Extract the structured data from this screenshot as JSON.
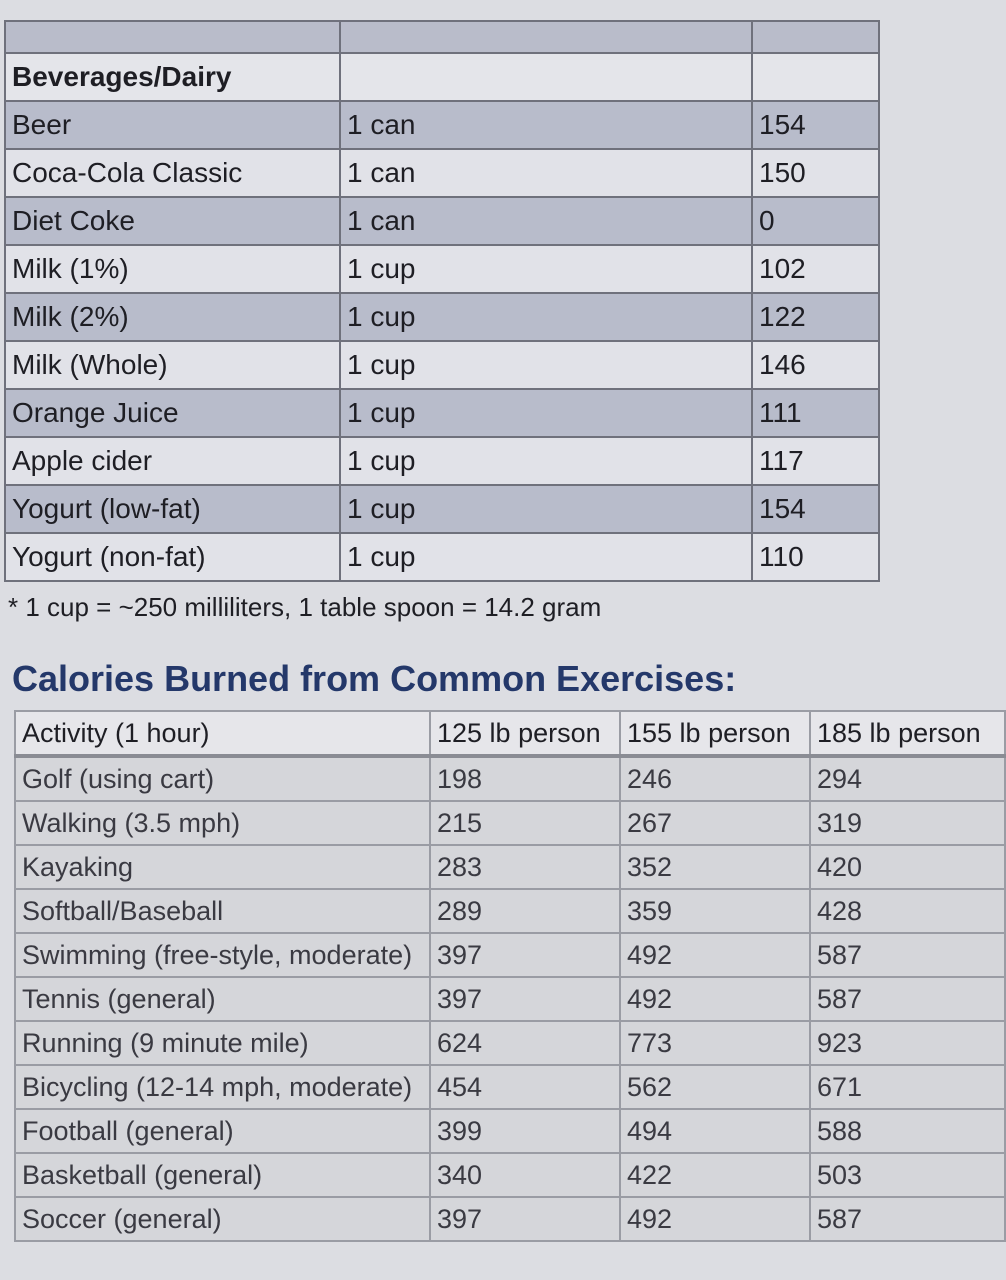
{
  "food_table": {
    "section": "Beverages/Dairy",
    "rows": [
      [
        "Beer",
        "1 can",
        154
      ],
      [
        "Coca-Cola Classic",
        "1 can",
        150
      ],
      [
        "Diet Coke",
        "1 can",
        0
      ],
      [
        "Milk (1%)",
        "1 cup",
        102
      ],
      [
        "Milk (2%)",
        "1 cup",
        122
      ],
      [
        "Milk (Whole)",
        "1 cup",
        146
      ],
      [
        "Orange Juice",
        "1 cup",
        111
      ],
      [
        "Apple cider",
        "1 cup",
        117
      ],
      [
        "Yogurt (low-fat)",
        "1 cup",
        154
      ],
      [
        "Yogurt (non-fat)",
        "1 cup",
        110
      ]
    ]
  },
  "footnote": "* 1 cup = ~250 milliliters, 1 table spoon = 14.2 gram",
  "heading": "Calories Burned from Common Exercises:",
  "exercise_table": {
    "header": [
      "Activity (1 hour)",
      "125 lb person",
      "155 lb person",
      "185 lb person"
    ],
    "rows": [
      [
        "Golf (using cart)",
        198,
        246,
        294
      ],
      [
        "Walking (3.5 mph)",
        215,
        267,
        319
      ],
      [
        "Kayaking",
        283,
        352,
        420
      ],
      [
        "Softball/Baseball",
        289,
        359,
        428
      ],
      [
        "Swimming (free-style, moderate)",
        397,
        492,
        587
      ],
      [
        "Tennis (general)",
        397,
        492,
        587
      ],
      [
        "Running (9 minute mile)",
        624,
        773,
        923
      ],
      [
        "Bicycling (12-14 mph, moderate)",
        454,
        562,
        671
      ],
      [
        "Football (general)",
        399,
        494,
        588
      ],
      [
        "Basketball (general)",
        340,
        422,
        503
      ],
      [
        "Soccer (general)",
        397,
        492,
        587
      ]
    ]
  }
}
